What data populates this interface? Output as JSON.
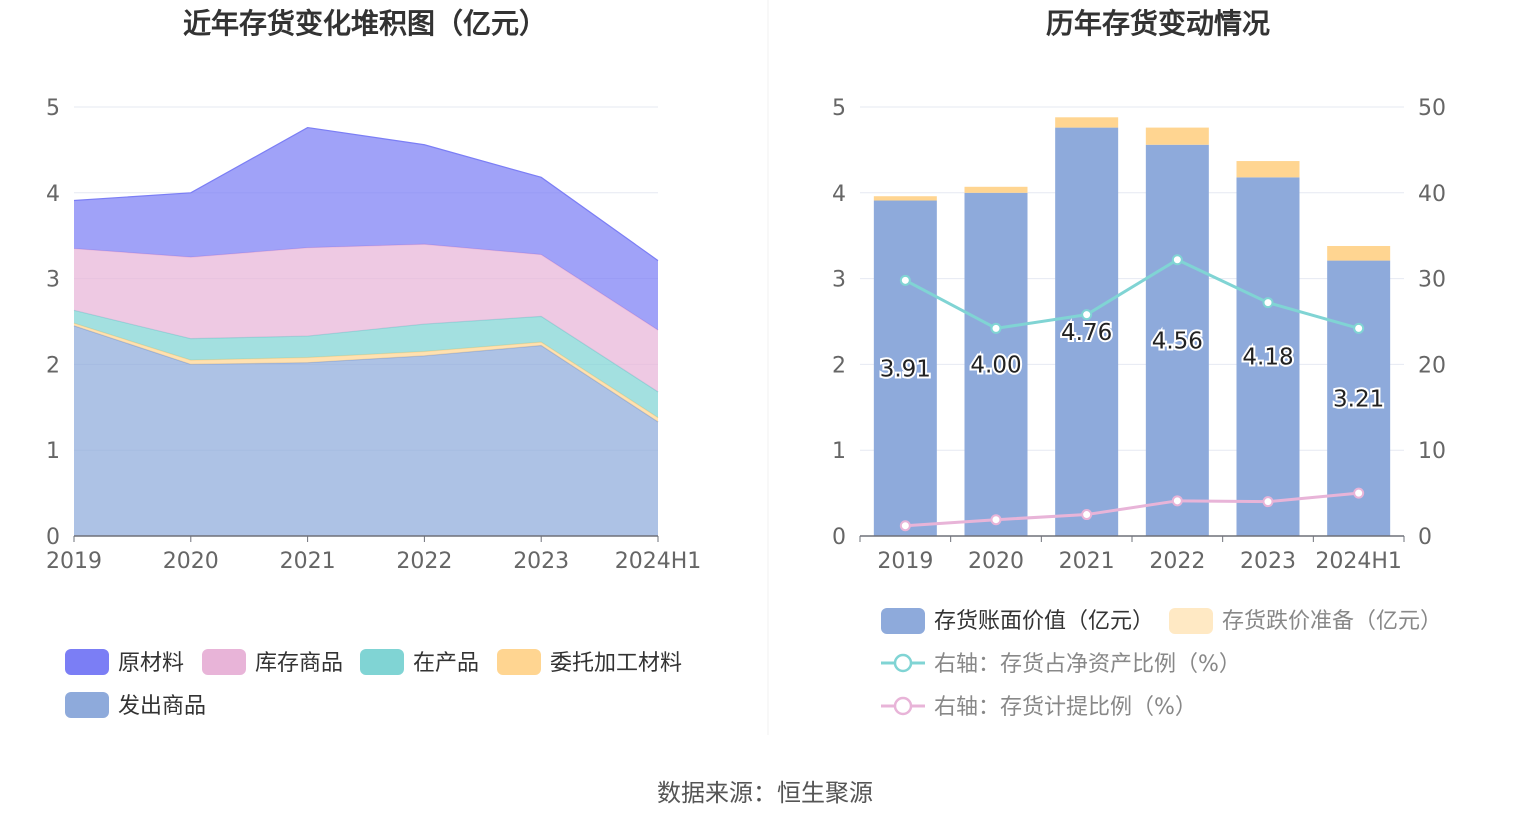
{
  "footer": {
    "source": "数据来源：恒生聚源"
  },
  "chart_data": [
    {
      "type": "area",
      "stacked": true,
      "title": "近年存货变化堆积图（亿元）",
      "categories": [
        "2019",
        "2020",
        "2021",
        "2022",
        "2023",
        "2024H1"
      ],
      "ylim": [
        0,
        5
      ],
      "yticks": [
        "0",
        "1",
        "2",
        "3",
        "4",
        "5"
      ],
      "series": [
        {
          "name": "发出商品",
          "color": "#8eaadb",
          "values": [
            2.45,
            2.0,
            2.02,
            2.1,
            2.22,
            1.33
          ]
        },
        {
          "name": "委托加工材料",
          "color": "#ffd591",
          "values": [
            0.03,
            0.05,
            0.06,
            0.05,
            0.04,
            0.05
          ]
        },
        {
          "name": "在产品",
          "color": "#80d4d4",
          "values": [
            0.15,
            0.25,
            0.25,
            0.32,
            0.3,
            0.3
          ]
        },
        {
          "name": "库存商品",
          "color": "#e8b4d8",
          "values": [
            0.72,
            0.95,
            1.03,
            0.93,
            0.72,
            0.72
          ]
        },
        {
          "name": "原材料",
          "color": "#7b7ef5",
          "values": [
            0.56,
            0.75,
            1.4,
            1.16,
            0.9,
            0.81
          ]
        }
      ],
      "legend_order": [
        "原材料",
        "库存商品",
        "在产品",
        "委托加工材料",
        "发出商品"
      ]
    },
    {
      "type": "bar",
      "stacked": true,
      "title": "历年存货变动情况",
      "categories": [
        "2019",
        "2020",
        "2021",
        "2022",
        "2023",
        "2024H1"
      ],
      "ylim": [
        0,
        5
      ],
      "yticks": [
        "0",
        "1",
        "2",
        "3",
        "4",
        "5"
      ],
      "y2lim": [
        0,
        50
      ],
      "y2ticks": [
        "0",
        "10",
        "20",
        "30",
        "40",
        "50"
      ],
      "series": [
        {
          "name": "存货账面价值（亿元）",
          "color": "#8eaadb",
          "values": [
            3.91,
            4.0,
            4.76,
            4.56,
            4.18,
            3.21
          ],
          "labels": [
            "3.91",
            "4.00",
            "4.76",
            "4.56",
            "4.18",
            "3.21"
          ]
        },
        {
          "name": "存货跌价准备（亿元）",
          "color": "#ffd591",
          "values": [
            0.05,
            0.07,
            0.12,
            0.2,
            0.19,
            0.17
          ]
        }
      ],
      "lines": [
        {
          "name": "右轴：存货占净资产比例（%）",
          "color": "#80d4d4",
          "axis": "right",
          "values": [
            29.8,
            24.2,
            25.8,
            32.2,
            27.2,
            24.2
          ]
        },
        {
          "name": "右轴：存货计提比例（%）",
          "color": "#e8b4d8",
          "axis": "right",
          "values": [
            1.2,
            1.9,
            2.5,
            4.1,
            4.0,
            5.0
          ]
        }
      ]
    }
  ]
}
